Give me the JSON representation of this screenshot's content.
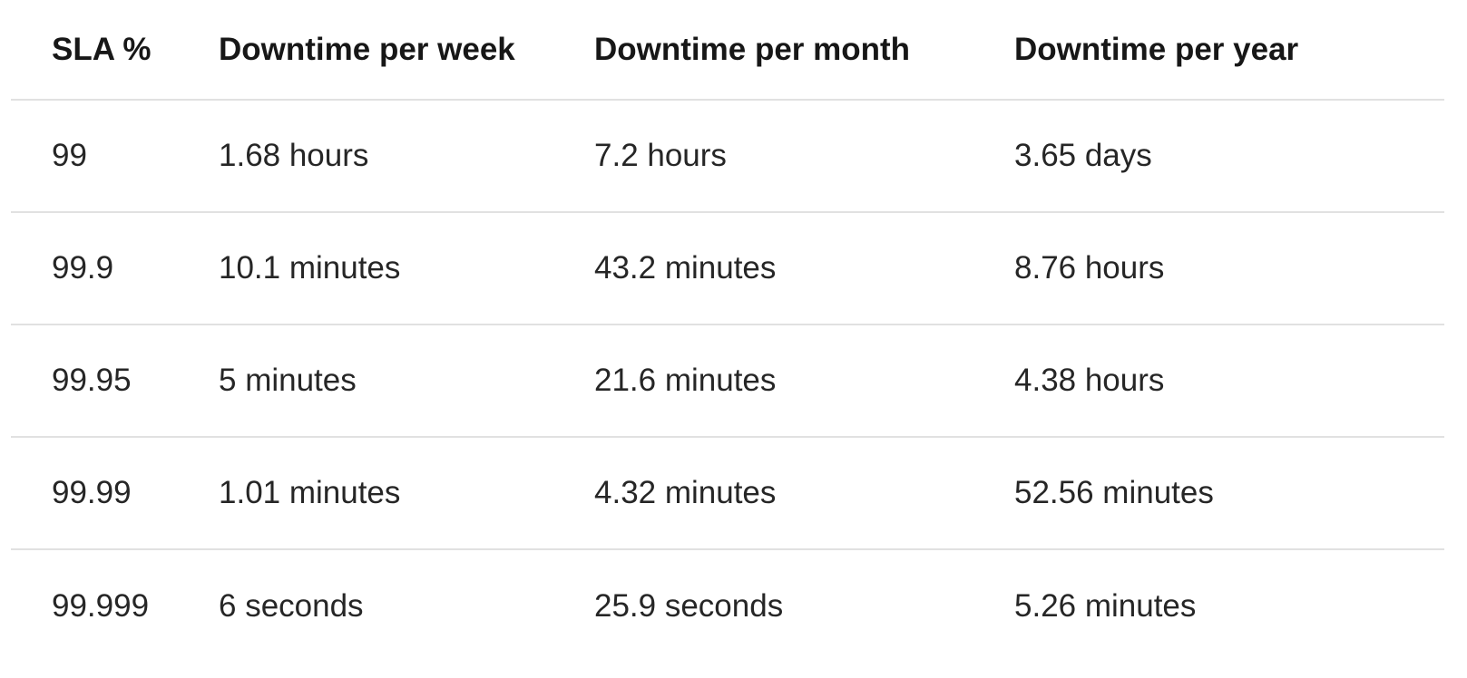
{
  "table": {
    "headers": [
      "SLA %",
      "Downtime per week",
      "Downtime per month",
      "Downtime per year"
    ],
    "rows": [
      [
        "99",
        "1.68 hours",
        "7.2 hours",
        "3.65 days"
      ],
      [
        "99.9",
        "10.1 minutes",
        "43.2 minutes",
        "8.76 hours"
      ],
      [
        "99.95",
        "5 minutes",
        "21.6 minutes",
        "4.38 hours"
      ],
      [
        "99.99",
        "1.01 minutes",
        "4.32 minutes",
        "52.56 minutes"
      ],
      [
        "99.999",
        "6 seconds",
        "25.9 seconds",
        "5.26 minutes"
      ]
    ]
  }
}
